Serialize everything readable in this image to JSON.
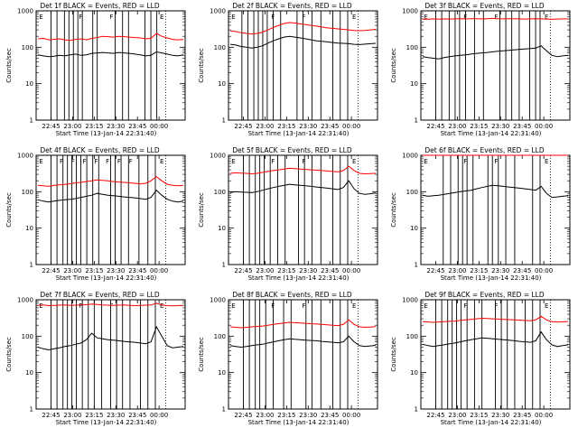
{
  "chart_data": [
    {
      "type": "line",
      "title": "Det 1f BLACK = Events, RED = LLD",
      "ylabel": "Counts/sec",
      "xlabel": "Start Time (13-Jan-14 22:31:40)",
      "x_ticks": [
        "22:45",
        "23:00",
        "23:15",
        "23:30",
        "23:45",
        "00:00"
      ],
      "y_ticks": [
        "1",
        "10",
        "100",
        "1000"
      ],
      "ylim": [
        1,
        1000
      ],
      "y_scale": "log",
      "series": [
        {
          "color": "#000000",
          "values": [
            62,
            58,
            55,
            57,
            60,
            58,
            62,
            65,
            60,
            62,
            68,
            70,
            72,
            70,
            68,
            72,
            70,
            68,
            65,
            62,
            58,
            60,
            75,
            70,
            65,
            60,
            58,
            62
          ]
        },
        {
          "color": "#ff0000",
          "values": [
            170,
            175,
            160,
            165,
            170,
            160,
            155,
            165,
            170,
            160,
            175,
            185,
            200,
            195,
            190,
            200,
            195,
            190,
            185,
            180,
            170,
            175,
            240,
            200,
            180,
            165,
            160,
            165
          ]
        }
      ],
      "annotations": [
        "E",
        "F",
        "F",
        "E"
      ],
      "vlines": [
        0.1,
        0.14,
        0.19,
        0.22,
        0.25,
        0.28,
        0.31,
        0.38,
        0.41,
        0.53,
        0.58,
        0.62,
        0.73,
        0.77,
        0.81
      ]
    },
    {
      "type": "line",
      "title": "Det 2f BLACK = Events, RED = LLD",
      "ylabel": "Counts/sec",
      "xlabel": "Start Time (13-Jan-14 22:31:40)",
      "x_ticks": [
        "22:45",
        "23:00",
        "23:15",
        "23:30",
        "23:45",
        "00:00"
      ],
      "y_ticks": [
        "1",
        "10",
        "100",
        "1000"
      ],
      "ylim": [
        1,
        1000
      ],
      "y_scale": "log",
      "series": [
        {
          "color": "#000000",
          "values": [
            120,
            115,
            105,
            100,
            95,
            100,
            110,
            130,
            150,
            170,
            190,
            200,
            190,
            180,
            170,
            160,
            150,
            145,
            140,
            135,
            130,
            128,
            125,
            120,
            118,
            122,
            125,
            128
          ]
        },
        {
          "color": "#ff0000",
          "values": [
            280,
            270,
            250,
            240,
            230,
            240,
            260,
            300,
            350,
            400,
            450,
            480,
            460,
            440,
            420,
            400,
            380,
            360,
            340,
            330,
            320,
            310,
            300,
            290,
            285,
            290,
            300,
            310
          ]
        }
      ],
      "annotations": [
        "E",
        "F",
        "F",
        "E"
      ],
      "vlines": [
        0.09,
        0.13,
        0.17,
        0.2,
        0.23,
        0.26,
        0.3,
        0.35,
        0.46,
        0.5,
        0.56,
        0.62,
        0.7,
        0.75,
        0.8
      ]
    },
    {
      "type": "line",
      "title": "Det 3f BLACK = Events, RED = LLD",
      "ylabel": "Counts/sec",
      "xlabel": "Start Time (13-Jan-14 22:31:40)",
      "x_ticks": [
        "22:45",
        "23:00",
        "23:15",
        "23:30",
        "23:45",
        "00:00"
      ],
      "y_ticks": [
        "1",
        "10",
        "100",
        "1000"
      ],
      "ylim": [
        1,
        1000
      ],
      "y_scale": "log",
      "series": [
        {
          "color": "#000000",
          "values": [
            55,
            52,
            50,
            48,
            52,
            55,
            58,
            60,
            62,
            65,
            68,
            70,
            72,
            75,
            78,
            80,
            82,
            85,
            88,
            90,
            92,
            95,
            110,
            80,
            60,
            55,
            58,
            60
          ]
        },
        {
          "color": "#ff0000",
          "values": [
            590,
            590,
            600,
            590,
            600,
            595,
            600,
            605,
            600,
            610,
            605,
            600,
            610,
            620,
            610,
            600,
            605,
            610,
            600,
            595,
            600,
            605,
            600,
            595,
            590,
            595,
            600,
            600
          ]
        }
      ],
      "annotations": [
        "E",
        "F",
        "F",
        "E"
      ],
      "vlines": [
        0.1,
        0.14,
        0.19,
        0.23,
        0.26,
        0.3,
        0.36,
        0.42,
        0.53,
        0.57,
        0.61,
        0.66,
        0.73,
        0.77,
        0.8
      ]
    },
    {
      "type": "line",
      "title": "Det 4f BLACK = Events, RED = LLD",
      "ylabel": "Counts/sec",
      "xlabel": "Start Time (13-Jan-14 22:31:40)",
      "x_ticks": [
        "22:45",
        "23:00",
        "23:15",
        "23:30",
        "23:45",
        "00:00"
      ],
      "y_ticks": [
        "1",
        "10",
        "100",
        "1000"
      ],
      "ylim": [
        1,
        1000
      ],
      "y_scale": "log",
      "series": [
        {
          "color": "#000000",
          "values": [
            60,
            55,
            52,
            55,
            58,
            60,
            62,
            65,
            70,
            75,
            80,
            90,
            85,
            80,
            78,
            75,
            72,
            70,
            68,
            65,
            62,
            70,
            110,
            80,
            62,
            55,
            52,
            55
          ]
        },
        {
          "color": "#ff0000",
          "values": [
            150,
            145,
            140,
            150,
            155,
            160,
            165,
            175,
            180,
            190,
            200,
            210,
            205,
            200,
            190,
            185,
            180,
            175,
            170,
            165,
            170,
            200,
            260,
            200,
            160,
            150,
            145,
            150
          ]
        }
      ],
      "annotations": [
        "E",
        "F",
        "F",
        "F",
        "F",
        "F",
        "F",
        "F",
        "E"
      ],
      "vlines": [
        0.1,
        0.14,
        0.18,
        0.21,
        0.24,
        0.27,
        0.3,
        0.34,
        0.38,
        0.42,
        0.5,
        0.53,
        0.57,
        0.62,
        0.69,
        0.75,
        0.8
      ]
    },
    {
      "type": "line",
      "title": "Det 5f BLACK = Events, RED = LLD",
      "ylabel": "Counts/sec",
      "xlabel": "Start Time (13-Jan-14 22:31:40)",
      "x_ticks": [
        "22:45",
        "23:00",
        "23:15",
        "23:30",
        "23:45",
        "00:00"
      ],
      "y_ticks": [
        "1",
        "10",
        "100",
        "1000"
      ],
      "ylim": [
        1,
        1000
      ],
      "y_scale": "log",
      "series": [
        {
          "color": "#000000",
          "values": [
            95,
            100,
            98,
            96,
            95,
            100,
            110,
            120,
            130,
            140,
            150,
            160,
            155,
            150,
            145,
            140,
            135,
            130,
            125,
            120,
            115,
            130,
            200,
            120,
            90,
            85,
            88,
            92
          ]
        },
        {
          "color": "#ff0000",
          "values": [
            320,
            330,
            325,
            320,
            310,
            320,
            340,
            360,
            380,
            400,
            420,
            440,
            430,
            420,
            410,
            400,
            390,
            380,
            370,
            360,
            350,
            380,
            500,
            380,
            320,
            310,
            315,
            320
          ]
        }
      ],
      "annotations": [
        "E",
        "F",
        "F",
        "E"
      ],
      "vlines": [
        0.1,
        0.14,
        0.18,
        0.21,
        0.24,
        0.28,
        0.33,
        0.38,
        0.47,
        0.51,
        0.56,
        0.62,
        0.7,
        0.75,
        0.8
      ]
    },
    {
      "type": "line",
      "title": "Det 6f BLACK = Events, RED = LLD",
      "ylabel": "Counts/sec",
      "xlabel": "Start Time (13-Jan-14 22:31:40)",
      "x_ticks": [
        "22:45",
        "23:00",
        "23:15",
        "23:30",
        "23:45",
        "00:00"
      ],
      "y_ticks": [
        "1",
        "10",
        "100",
        "1000"
      ],
      "ylim": [
        1,
        1000
      ],
      "y_scale": "log",
      "series": [
        {
          "color": "#000000",
          "values": [
            80,
            75,
            78,
            80,
            85,
            90,
            95,
            100,
            105,
            110,
            120,
            130,
            140,
            150,
            145,
            140,
            135,
            130,
            125,
            120,
            115,
            110,
            140,
            90,
            70,
            72,
            75,
            78
          ]
        },
        {
          "color": "#ff0000",
          "values": [
            1000,
            1000,
            1000,
            1000,
            1000,
            1000,
            1000,
            1000,
            1000,
            1000,
            1000,
            1000,
            1000,
            1000,
            1000,
            1000,
            1000,
            1000,
            1000,
            1000,
            1000,
            1000,
            1000,
            1000,
            1000,
            1000,
            1000,
            1000
          ]
        }
      ],
      "annotations": [
        "E",
        "F",
        "F",
        "E"
      ],
      "vlines": [
        0.15,
        0.2,
        0.25,
        0.28,
        0.31,
        0.35,
        0.45,
        0.48,
        0.52,
        0.57,
        0.63,
        0.75,
        0.8
      ]
    },
    {
      "type": "line",
      "title": "Det 7f BLACK = Events, RED = LLD",
      "ylabel": "Counts/sec",
      "xlabel": "Start Time (13-Jan-14 22:31:40)",
      "x_ticks": [
        "22:45",
        "23:00",
        "23:15",
        "23:30",
        "23:45",
        "00:00"
      ],
      "y_ticks": [
        "1",
        "10",
        "100",
        "1000"
      ],
      "ylim": [
        1,
        1000
      ],
      "y_scale": "log",
      "series": [
        {
          "color": "#000000",
          "values": [
            50,
            45,
            42,
            45,
            48,
            52,
            55,
            60,
            65,
            80,
            120,
            90,
            85,
            80,
            78,
            75,
            72,
            70,
            68,
            65,
            62,
            70,
            180,
            100,
            55,
            48,
            50,
            52
          ]
        },
        {
          "color": "#ff0000",
          "values": [
            700,
            720,
            690,
            700,
            710,
            720,
            700,
            710,
            720,
            730,
            760,
            740,
            720,
            710,
            700,
            710,
            720,
            700,
            690,
            700,
            710,
            720,
            800,
            720,
            690,
            680,
            690,
            700
          ]
        }
      ],
      "annotations": [
        "E",
        "F",
        "F",
        "E"
      ],
      "vlines": [
        0.1,
        0.14,
        0.18,
        0.21,
        0.24,
        0.27,
        0.31,
        0.35,
        0.39,
        0.44,
        0.5,
        0.54,
        0.58,
        0.63,
        0.7,
        0.75,
        0.8
      ]
    },
    {
      "type": "line",
      "title": "Det 8f BLACK = Events, RED = LLD",
      "ylabel": "Counts/sec",
      "xlabel": "Start Time (13-Jan-14 22:31:40)",
      "x_ticks": [
        "22:45",
        "23:00",
        "23:15",
        "23:30",
        "23:45",
        "00:00"
      ],
      "y_ticks": [
        "1",
        "10",
        "100",
        "1000"
      ],
      "ylim": [
        1,
        1000
      ],
      "y_scale": "log",
      "series": [
        {
          "color": "#000000",
          "values": [
            55,
            52,
            50,
            52,
            55,
            58,
            60,
            65,
            70,
            75,
            80,
            85,
            82,
            80,
            78,
            76,
            75,
            72,
            70,
            68,
            66,
            70,
            100,
            70,
            55,
            52,
            54,
            56
          ]
        },
        {
          "color": "#ff0000",
          "values": [
            180,
            175,
            170,
            175,
            180,
            185,
            190,
            200,
            210,
            220,
            230,
            240,
            235,
            230,
            225,
            220,
            215,
            210,
            205,
            200,
            195,
            210,
            280,
            210,
            180,
            175,
            178,
            182
          ]
        }
      ],
      "annotations": [
        "E",
        "F",
        "F",
        "E"
      ],
      "vlines": [
        0.1,
        0.14,
        0.18,
        0.21,
        0.25,
        0.3,
        0.37,
        0.42,
        0.52,
        0.56,
        0.62,
        0.7,
        0.75,
        0.8
      ]
    },
    {
      "type": "line",
      "title": "Det 9f BLACK = Events, RED = LLD",
      "ylabel": "Counts/sec",
      "xlabel": "Start Time (13-Jan-14 22:31:40)",
      "x_ticks": [
        "22:45",
        "23:00",
        "23:15",
        "23:30",
        "23:45",
        "00:00"
      ],
      "y_ticks": [
        "1",
        "10",
        "100",
        "1000"
      ],
      "ylim": [
        1,
        1000
      ],
      "y_scale": "log",
      "series": [
        {
          "color": "#000000",
          "values": [
            60,
            55,
            52,
            55,
            58,
            62,
            65,
            70,
            75,
            80,
            85,
            90,
            88,
            85,
            82,
            80,
            78,
            75,
            72,
            70,
            68,
            75,
            130,
            80,
            58,
            52,
            55,
            58
          ]
        },
        {
          "color": "#ff0000",
          "values": [
            250,
            245,
            240,
            245,
            250,
            255,
            260,
            270,
            280,
            290,
            300,
            310,
            305,
            300,
            295,
            290,
            285,
            280,
            275,
            270,
            265,
            280,
            350,
            280,
            250,
            245,
            248,
            252
          ]
        }
      ],
      "annotations": [
        "E",
        "F",
        "F",
        "E"
      ],
      "vlines": [
        0.1,
        0.14,
        0.18,
        0.21,
        0.24,
        0.27,
        0.31,
        0.36,
        0.41,
        0.5,
        0.54,
        0.58,
        0.63,
        0.7,
        0.75,
        0.8
      ]
    }
  ]
}
